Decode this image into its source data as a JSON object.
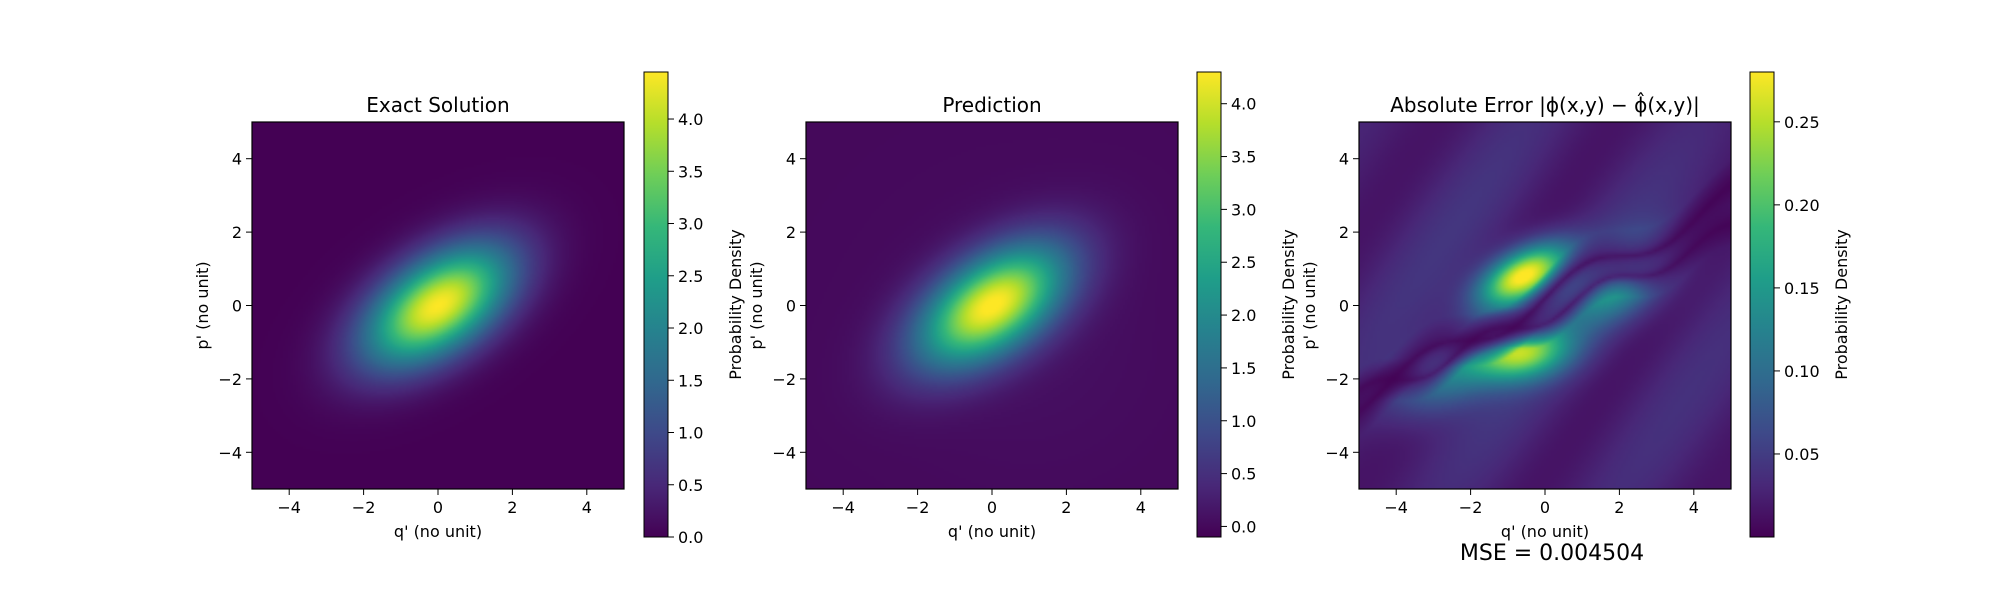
{
  "colormap": "viridis",
  "colormap_stops": [
    "#440154",
    "#482878",
    "#3e4989",
    "#31688e",
    "#26828e",
    "#1f9e89",
    "#35b779",
    "#6ece58",
    "#b5de2b",
    "#fde725"
  ],
  "footer": {
    "mse_text": "MSE = 0.004504"
  },
  "chart_data": [
    {
      "type": "heatmap",
      "title": "Exact Solution",
      "xlabel": "q' (no unit)",
      "ylabel": "p' (no unit)",
      "xlim": [
        -5,
        5
      ],
      "ylim": [
        -5,
        5
      ],
      "xticks": [
        -4,
        -2,
        0,
        2,
        4
      ],
      "yticks": [
        -4,
        -2,
        0,
        2,
        4
      ],
      "colorbar": {
        "label": "Probability Density",
        "vmin": 0.0,
        "vmax": 4.45,
        "ticks": [
          0.0,
          0.5,
          1.0,
          1.5,
          2.0,
          2.5,
          3.0,
          3.5,
          4.0
        ],
        "tick_labels": [
          "0.0",
          "0.5",
          "1.0",
          "1.5",
          "2.0",
          "2.5",
          "3.0",
          "3.5",
          "4.0"
        ]
      },
      "field": {
        "kind": "gaussian",
        "peak": 4.45,
        "center": [
          0,
          0
        ],
        "angle_deg": 35,
        "sigma_major": 1.55,
        "sigma_minor": 0.85
      },
      "grid": false
    },
    {
      "type": "heatmap",
      "title": "Prediction",
      "xlabel": "q' (no unit)",
      "ylabel": "p' (no unit)",
      "xlim": [
        -5,
        5
      ],
      "ylim": [
        -5,
        5
      ],
      "xticks": [
        -4,
        -2,
        0,
        2,
        4
      ],
      "yticks": [
        -4,
        -2,
        0,
        2,
        4
      ],
      "colorbar": {
        "label": "Probability Density",
        "vmin": -0.1,
        "vmax": 4.3,
        "ticks": [
          0.0,
          0.5,
          1.0,
          1.5,
          2.0,
          2.5,
          3.0,
          3.5,
          4.0
        ],
        "tick_labels": [
          "0.0",
          "0.5",
          "1.0",
          "1.5",
          "2.0",
          "2.5",
          "3.0",
          "3.5",
          "4.0"
        ]
      },
      "field": {
        "kind": "gaussian",
        "peak": 4.3,
        "center": [
          0,
          0
        ],
        "angle_deg": 35,
        "sigma_major": 1.55,
        "sigma_minor": 0.85
      },
      "grid": false
    },
    {
      "type": "heatmap",
      "title": "Absolute Error |ϕ(x,y) − ϕ̂(x,y)|",
      "xlabel": "q' (no unit)",
      "ylabel": "p' (no unit)",
      "xlim": [
        -5,
        5
      ],
      "ylim": [
        -5,
        5
      ],
      "xticks": [
        -4,
        -2,
        0,
        2,
        4
      ],
      "yticks": [
        -4,
        -2,
        0,
        2,
        4
      ],
      "colorbar": {
        "label": "Probability Density",
        "vmin": 0.0,
        "vmax": 0.28,
        "ticks": [
          0.05,
          0.1,
          0.15,
          0.2,
          0.25
        ],
        "tick_labels": [
          "0.05",
          "0.10",
          "0.15",
          "0.20",
          "0.25"
        ]
      },
      "field": {
        "kind": "error",
        "peak": 0.28,
        "hotspots": [
          {
            "center": [
              -0.6,
              0.8
            ],
            "amp": 0.27,
            "sx": 0.9,
            "sy": 0.45,
            "angle_deg": 30
          },
          {
            "center": [
              -0.6,
              -1.3
            ],
            "amp": 0.19,
            "sx": 0.9,
            "sy": 0.5,
            "angle_deg": 10
          },
          {
            "center": [
              2.0,
              0.6
            ],
            "amp": 0.12,
            "sx": 1.1,
            "sy": 0.6,
            "angle_deg": 35
          },
          {
            "center": [
              -2.5,
              -1.8
            ],
            "amp": 0.1,
            "sx": 1.2,
            "sy": 0.6,
            "angle_deg": 30
          }
        ]
      },
      "grid": false
    }
  ]
}
